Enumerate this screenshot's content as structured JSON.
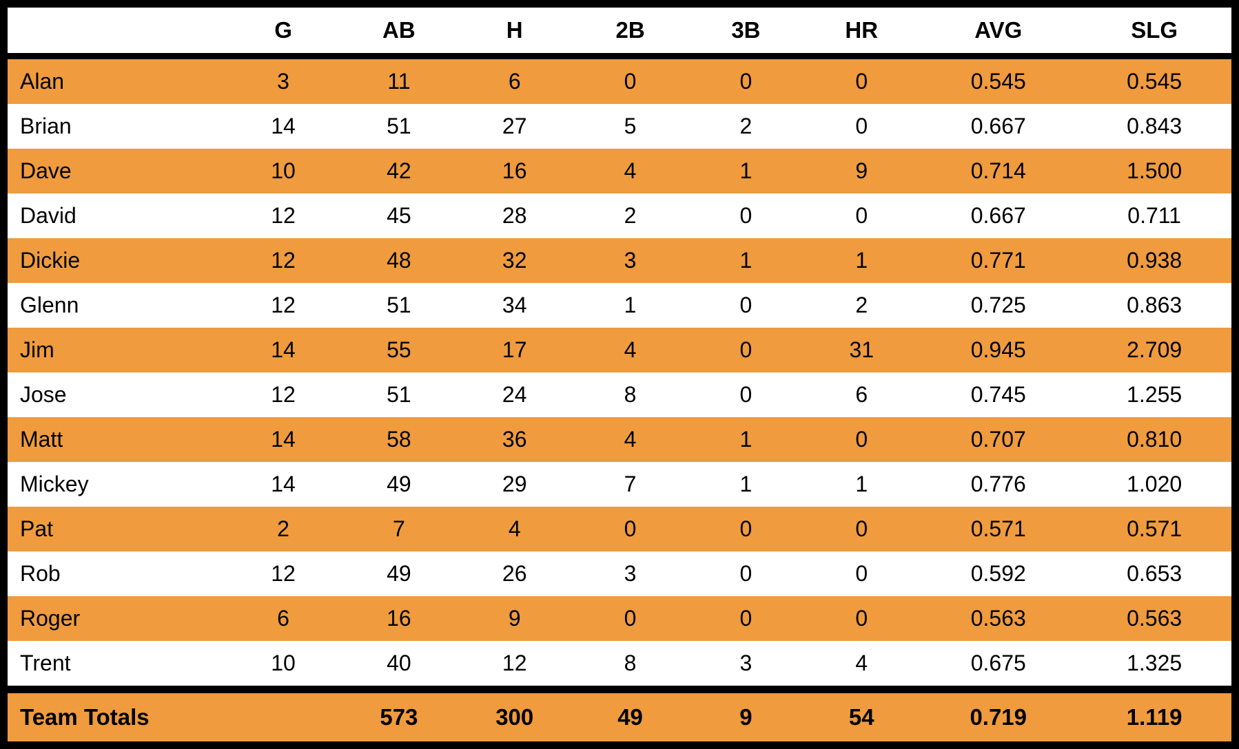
{
  "chart_data": {
    "type": "table",
    "title": "",
    "columns": [
      "",
      "G",
      "AB",
      "H",
      "2B",
      "3B",
      "HR",
      "AVG",
      "SLG"
    ],
    "rows": [
      {
        "name": "Alan",
        "values": [
          "3",
          "11",
          "6",
          "0",
          "0",
          "0",
          "0.545",
          "0.545"
        ]
      },
      {
        "name": "Brian",
        "values": [
          "14",
          "51",
          "27",
          "5",
          "2",
          "0",
          "0.667",
          "0.843"
        ]
      },
      {
        "name": "Dave",
        "values": [
          "10",
          "42",
          "16",
          "4",
          "1",
          "9",
          "0.714",
          "1.500"
        ]
      },
      {
        "name": "David",
        "values": [
          "12",
          "45",
          "28",
          "2",
          "0",
          "0",
          "0.667",
          "0.711"
        ]
      },
      {
        "name": "Dickie",
        "values": [
          "12",
          "48",
          "32",
          "3",
          "1",
          "1",
          "0.771",
          "0.938"
        ]
      },
      {
        "name": "Glenn",
        "values": [
          "12",
          "51",
          "34",
          "1",
          "0",
          "2",
          "0.725",
          "0.863"
        ]
      },
      {
        "name": "Jim",
        "values": [
          "14",
          "55",
          "17",
          "4",
          "0",
          "31",
          "0.945",
          "2.709"
        ]
      },
      {
        "name": "Jose",
        "values": [
          "12",
          "51",
          "24",
          "8",
          "0",
          "6",
          "0.745",
          "1.255"
        ]
      },
      {
        "name": "Matt",
        "values": [
          "14",
          "58",
          "36",
          "4",
          "1",
          "0",
          "0.707",
          "0.810"
        ]
      },
      {
        "name": "Mickey",
        "values": [
          "14",
          "49",
          "29",
          "7",
          "1",
          "1",
          "0.776",
          "1.020"
        ]
      },
      {
        "name": "Pat",
        "values": [
          "2",
          "7",
          "4",
          "0",
          "0",
          "0",
          "0.571",
          "0.571"
        ]
      },
      {
        "name": "Rob",
        "values": [
          "12",
          "49",
          "26",
          "3",
          "0",
          "0",
          "0.592",
          "0.653"
        ]
      },
      {
        "name": "Roger",
        "values": [
          "6",
          "16",
          "9",
          "0",
          "0",
          "0",
          "0.563",
          "0.563"
        ]
      },
      {
        "name": "Trent",
        "values": [
          "10",
          "40",
          "12",
          "8",
          "3",
          "4",
          "0.675",
          "1.325"
        ]
      }
    ],
    "totals": {
      "label": "Team Totals",
      "values": [
        "",
        "573",
        "300",
        "49",
        "9",
        "54",
        "0.719",
        "1.119"
      ]
    },
    "layout_hints": {
      "striped_rows": true,
      "first_data_row_highlighted": true,
      "grid": "off"
    }
  },
  "style": {
    "row_alt_color": "#EF9B3E",
    "row_base_color": "#FFFFFF",
    "border_color": "#000000",
    "text_color": "#000000"
  }
}
